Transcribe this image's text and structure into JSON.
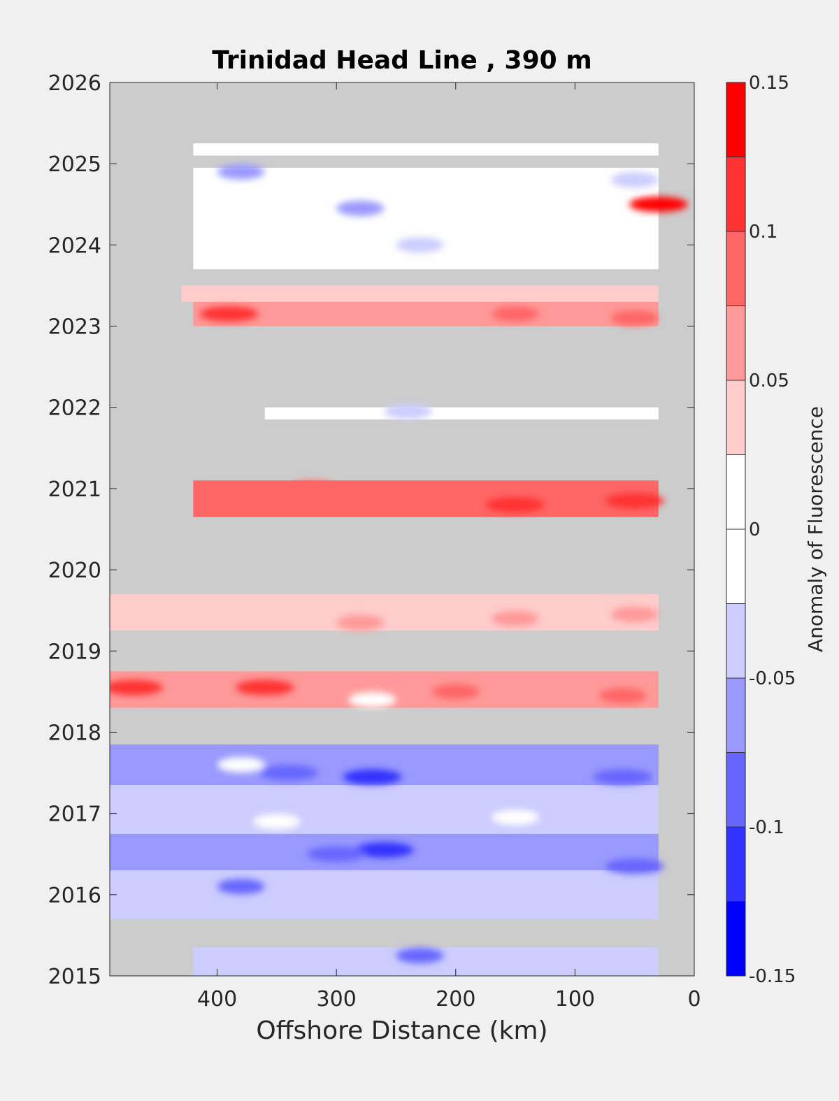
{
  "chart_data": {
    "type": "heatmap",
    "title": "Trinidad Head Line , 390 m",
    "xlabel": "Offshore Distance (km)",
    "ylabel": "",
    "xlim": [
      490,
      0
    ],
    "ylim": [
      2015,
      2026
    ],
    "x_reversed": true,
    "x_ticks": [
      400,
      300,
      200,
      100,
      0
    ],
    "y_ticks": [
      2015,
      2016,
      2017,
      2018,
      2019,
      2020,
      2021,
      2022,
      2023,
      2024,
      2025,
      2026
    ],
    "missing_color": "#cccccc",
    "colorbar": {
      "label": "Anomaly of Fluorescence",
      "min": -0.15,
      "max": 0.15,
      "ticks": [
        0.15,
        0.1,
        0.05,
        0,
        -0.05,
        -0.1,
        -0.15
      ],
      "tick_labels": [
        "0.15",
        "0.1",
        "0.05",
        "0",
        "-0.05",
        "-0.1",
        "-0.15"
      ],
      "levels": [
        {
          "from": -0.15,
          "to": -0.125,
          "color": "#0000ff"
        },
        {
          "from": -0.125,
          "to": -0.1,
          "color": "#3333ff"
        },
        {
          "from": -0.1,
          "to": -0.075,
          "color": "#6666ff"
        },
        {
          "from": -0.075,
          "to": -0.05,
          "color": "#9999ff"
        },
        {
          "from": -0.05,
          "to": -0.025,
          "color": "#ccccff"
        },
        {
          "from": -0.025,
          "to": 0,
          "color": "#ffffff"
        },
        {
          "from": 0,
          "to": 0.025,
          "color": "#ffffff"
        },
        {
          "from": 0.025,
          "to": 0.05,
          "color": "#ffcccc"
        },
        {
          "from": 0.05,
          "to": 0.075,
          "color": "#ff9999"
        },
        {
          "from": 0.075,
          "to": 0.1,
          "color": "#ff6666"
        },
        {
          "from": 0.1,
          "to": 0.125,
          "color": "#ff3333"
        },
        {
          "from": 0.125,
          "to": 0.15,
          "color": "#ff0000"
        }
      ]
    },
    "bands": [
      {
        "t0": 2015.0,
        "t1": 2015.35,
        "x0": 420,
        "x1": 30,
        "value": -0.03
      },
      {
        "t0": 2015.7,
        "t1": 2016.3,
        "x0": 490,
        "x1": 30,
        "value": -0.03
      },
      {
        "t0": 2016.3,
        "t1": 2016.75,
        "x0": 490,
        "x1": 30,
        "value": -0.07
      },
      {
        "t0": 2016.75,
        "t1": 2017.35,
        "x0": 490,
        "x1": 30,
        "value": -0.03
      },
      {
        "t0": 2017.35,
        "t1": 2017.85,
        "x0": 490,
        "x1": 30,
        "value": -0.07
      },
      {
        "t0": 2018.3,
        "t1": 2018.75,
        "x0": 490,
        "x1": 30,
        "value": 0.06
      },
      {
        "t0": 2019.25,
        "t1": 2019.7,
        "x0": 490,
        "x1": 30,
        "value": 0.03
      },
      {
        "t0": 2020.65,
        "t1": 2021.1,
        "x0": 420,
        "x1": 30,
        "value": 0.08
      },
      {
        "t0": 2021.85,
        "t1": 2022.0,
        "x0": 360,
        "x1": 30,
        "value": 0.0
      },
      {
        "t0": 2023.0,
        "t1": 2023.3,
        "x0": 420,
        "x1": 30,
        "value": 0.07
      },
      {
        "t0": 2023.3,
        "t1": 2023.5,
        "x0": 430,
        "x1": 30,
        "value": 0.03
      },
      {
        "t0": 2023.7,
        "t1": 2024.95,
        "x0": 420,
        "x1": 30,
        "value": -0.01
      },
      {
        "t0": 2025.1,
        "t1": 2025.25,
        "x0": 420,
        "x1": 30,
        "value": 0.0
      }
    ],
    "patches": [
      {
        "t": 2016.55,
        "x": 260,
        "value": -0.12
      },
      {
        "t": 2016.5,
        "x": 300,
        "value": -0.1
      },
      {
        "t": 2016.35,
        "x": 50,
        "value": -0.1
      },
      {
        "t": 2016.1,
        "x": 380,
        "value": -0.08
      },
      {
        "t": 2017.45,
        "x": 270,
        "value": -0.12
      },
      {
        "t": 2017.5,
        "x": 340,
        "value": -0.1
      },
      {
        "t": 2017.45,
        "x": 60,
        "value": -0.1
      },
      {
        "t": 2015.25,
        "x": 230,
        "value": -0.08
      },
      {
        "t": 2016.9,
        "x": 350,
        "value": 0.0
      },
      {
        "t": 2017.6,
        "x": 380,
        "value": 0.0
      },
      {
        "t": 2016.95,
        "x": 150,
        "value": 0.0
      },
      {
        "t": 2018.55,
        "x": 470,
        "value": 0.11
      },
      {
        "t": 2018.55,
        "x": 360,
        "value": 0.1
      },
      {
        "t": 2018.5,
        "x": 200,
        "value": 0.08
      },
      {
        "t": 2018.45,
        "x": 60,
        "value": 0.08
      },
      {
        "t": 2018.4,
        "x": 270,
        "value": 0.0
      },
      {
        "t": 2019.45,
        "x": 50,
        "value": 0.06
      },
      {
        "t": 2019.4,
        "x": 150,
        "value": 0.05
      },
      {
        "t": 2019.35,
        "x": 280,
        "value": 0.05
      },
      {
        "t": 2020.8,
        "x": 150,
        "value": 0.11
      },
      {
        "t": 2020.85,
        "x": 50,
        "value": 0.1
      },
      {
        "t": 2021.0,
        "x": 320,
        "value": 0.09
      },
      {
        "t": 2023.15,
        "x": 390,
        "value": 0.11
      },
      {
        "t": 2023.15,
        "x": 150,
        "value": 0.09
      },
      {
        "t": 2023.1,
        "x": 50,
        "value": 0.09
      },
      {
        "t": 2024.5,
        "x": 30,
        "value": 0.13
      },
      {
        "t": 2024.45,
        "x": 280,
        "value": -0.07
      },
      {
        "t": 2024.9,
        "x": 380,
        "value": -0.06
      },
      {
        "t": 2024.8,
        "x": 50,
        "value": -0.05
      },
      {
        "t": 2024.0,
        "x": 230,
        "value": -0.04
      },
      {
        "t": 2021.95,
        "x": 240,
        "value": -0.04
      }
    ]
  }
}
